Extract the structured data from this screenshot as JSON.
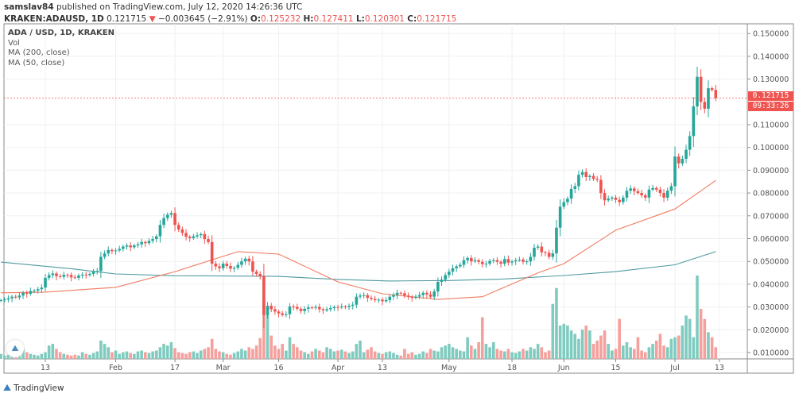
{
  "header": {
    "author": "samslav84",
    "published_text": "published on TradingView.com, July 12, 2020 14:26:36 UTC",
    "symbol": "KRAKEN:ADAUSD, 1D",
    "last": "0.121715",
    "change": "−0.003645 (−2.91%)",
    "o_label": "O:",
    "o": "0.125232",
    "h_label": "H:",
    "h": "0.127411",
    "l_label": "L:",
    "l": "0.120301",
    "c_label": "C:",
    "c": "0.121715"
  },
  "legend": {
    "title": "ADA / USD, 1D, KRAKEN",
    "items": [
      "Vol",
      "MA (200, close)",
      "MA (50, close)"
    ]
  },
  "price_label": {
    "value": "0.121715",
    "countdown": "09:33:26"
  },
  "footer": {
    "brand": "TradingView"
  },
  "colors": {
    "up": "#26a69a",
    "down": "#ef5350",
    "vol_up": "#7fcbbf",
    "vol_down": "#f5a09d",
    "ma50": "#f07b5f",
    "ma200": "#4f9aa0",
    "grid": "#eef0f3"
  },
  "chart_data": {
    "type": "candlestick",
    "price_axis": {
      "ticks": [
        "0.150000",
        "0.140000",
        "0.130000",
        "0.110000",
        "0.100000",
        "0.090000",
        "0.080000",
        "0.070000",
        "0.060000",
        "0.050000",
        "0.040000",
        "0.030000",
        "0.020000",
        "0.010000"
      ],
      "range": [
        0.0,
        0.16
      ]
    },
    "time_axis": [
      {
        "label": "13",
        "date": "2020-01-13"
      },
      {
        "label": "Feb",
        "date": "2020-02-01"
      },
      {
        "label": "17",
        "date": "2020-02-17"
      },
      {
        "label": "Mar",
        "date": "2020-03-01"
      },
      {
        "label": "16",
        "date": "2020-03-16"
      },
      {
        "label": "Apr",
        "date": "2020-04-01"
      },
      {
        "label": "13",
        "date": "2020-04-13"
      },
      {
        "label": "May",
        "date": "2020-05-01"
      },
      {
        "label": "18",
        "date": "2020-05-18"
      },
      {
        "label": "Jun",
        "date": "2020-06-01"
      },
      {
        "label": "15",
        "date": "2020-06-15"
      },
      {
        "label": "Jul",
        "date": "2020-07-01"
      },
      {
        "label": "13",
        "date": "2020-07-13"
      }
    ],
    "start_date": "2020-01-01",
    "first_open": 0.0328,
    "closes": [
      0.033,
      0.0333,
      0.0338,
      0.0345,
      0.0342,
      0.035,
      0.0362,
      0.0358,
      0.037,
      0.0372,
      0.0378,
      0.0385,
      0.0428,
      0.044,
      0.0447,
      0.0435,
      0.0432,
      0.0441,
      0.044,
      0.043,
      0.0428,
      0.0438,
      0.0442,
      0.044,
      0.0445,
      0.0455,
      0.0458,
      0.052,
      0.0535,
      0.055,
      0.0545,
      0.0548,
      0.0555,
      0.0565,
      0.057,
      0.0562,
      0.057,
      0.0575,
      0.0585,
      0.058,
      0.059,
      0.0598,
      0.061,
      0.066,
      0.069,
      0.0705,
      0.0712,
      0.066,
      0.064,
      0.0625,
      0.0608,
      0.0602,
      0.061,
      0.0615,
      0.062,
      0.0598,
      0.0585,
      0.049,
      0.0478,
      0.047,
      0.049,
      0.048,
      0.0468,
      0.0472,
      0.0485,
      0.05,
      0.0512,
      0.05,
      0.0455,
      0.0445,
      0.0435,
      0.0265,
      0.0305,
      0.029,
      0.028,
      0.0272,
      0.0265,
      0.0268,
      0.0302,
      0.03,
      0.0292,
      0.0282,
      0.0292,
      0.0298,
      0.0296,
      0.03,
      0.029,
      0.0285,
      0.029,
      0.0295,
      0.03,
      0.0298,
      0.0302,
      0.03,
      0.0305,
      0.031,
      0.0345,
      0.035,
      0.0352,
      0.034,
      0.0335,
      0.033,
      0.0332,
      0.0325,
      0.033,
      0.0345,
      0.0352,
      0.0362,
      0.036,
      0.035,
      0.0345,
      0.034,
      0.0345,
      0.0352,
      0.0362,
      0.0355,
      0.0345,
      0.0368,
      0.041,
      0.042,
      0.044,
      0.0455,
      0.047,
      0.0478,
      0.0485,
      0.0505,
      0.0515,
      0.05,
      0.0505,
      0.0498,
      0.0488,
      0.049,
      0.0502,
      0.0505,
      0.0498,
      0.049,
      0.051,
      0.0495,
      0.05,
      0.0505,
      0.0508,
      0.0498,
      0.05,
      0.052,
      0.056,
      0.0565,
      0.054,
      0.0538,
      0.052,
      0.0535,
      0.0648,
      0.074,
      0.076,
      0.0775,
      0.0818,
      0.083,
      0.088,
      0.0892,
      0.087,
      0.0875,
      0.0862,
      0.0858,
      0.08,
      0.0768,
      0.0775,
      0.078,
      0.077,
      0.076,
      0.078,
      0.081,
      0.082,
      0.0808,
      0.08,
      0.079,
      0.078,
      0.0815,
      0.0822,
      0.0815,
      0.08,
      0.078,
      0.081,
      0.083,
      0.096,
      0.093,
      0.095,
      0.099,
      0.105,
      0.118,
      0.131,
      0.12,
      0.117,
      0.126,
      0.125232,
      0.121715
    ],
    "volumes": [
      6,
      4,
      5,
      6,
      7,
      9,
      12,
      8,
      6,
      5,
      4,
      6,
      8,
      16,
      18,
      12,
      8,
      6,
      5,
      4,
      5,
      4,
      8,
      6,
      5,
      7,
      9,
      22,
      18,
      14,
      8,
      10,
      6,
      8,
      9,
      7,
      6,
      9,
      10,
      8,
      7,
      9,
      10,
      14,
      18,
      16,
      20,
      13,
      8,
      7,
      6,
      8,
      9,
      7,
      10,
      12,
      14,
      24,
      12,
      9,
      8,
      6,
      5,
      7,
      9,
      12,
      10,
      14,
      12,
      16,
      25,
      70,
      55,
      28,
      16,
      12,
      18,
      10,
      26,
      18,
      14,
      10,
      8,
      6,
      9,
      12,
      10,
      8,
      14,
      12,
      9,
      10,
      11,
      9,
      7,
      9,
      18,
      22,
      8,
      11,
      14,
      9,
      7,
      6,
      8,
      9,
      7,
      5,
      4,
      12,
      6,
      8,
      5,
      6,
      9,
      7,
      12,
      10,
      9,
      14,
      16,
      18,
      14,
      12,
      10,
      9,
      26,
      16,
      12,
      20,
      50,
      18,
      14,
      20,
      12,
      10,
      9,
      12,
      8,
      7,
      9,
      12,
      10,
      14,
      12,
      18,
      14,
      8,
      10,
      66,
      85,
      40,
      42,
      40,
      34,
      30,
      24,
      35,
      40,
      34,
      18,
      22,
      28,
      34,
      18,
      10,
      12,
      48,
      16,
      20,
      14,
      12,
      26,
      10,
      8,
      14,
      18,
      22,
      30,
      16,
      14,
      24,
      26,
      28,
      40,
      52,
      48,
      26,
      100,
      60,
      48,
      32,
      26,
      14
    ],
    "ma200": [
      [
        "2020-01-01",
        0.0497
      ],
      [
        "2020-01-20",
        0.0468
      ],
      [
        "2020-02-01",
        0.0445
      ],
      [
        "2020-02-17",
        0.0437
      ],
      [
        "2020-03-01",
        0.0436
      ],
      [
        "2020-03-16",
        0.0434
      ],
      [
        "2020-04-01",
        0.0421
      ],
      [
        "2020-04-15",
        0.0414
      ],
      [
        "2020-05-01",
        0.0416
      ],
      [
        "2020-05-15",
        0.0422
      ],
      [
        "2020-06-01",
        0.0438
      ],
      [
        "2020-06-15",
        0.0455
      ],
      [
        "2020-07-01",
        0.0485
      ],
      [
        "2020-07-12",
        0.0543
      ]
    ],
    "ma50": [
      [
        "2020-01-01",
        0.0362
      ],
      [
        "2020-01-13",
        0.0365
      ],
      [
        "2020-02-01",
        0.0386
      ],
      [
        "2020-02-17",
        0.0455
      ],
      [
        "2020-03-05",
        0.0543
      ],
      [
        "2020-03-16",
        0.0532
      ],
      [
        "2020-04-01",
        0.041
      ],
      [
        "2020-04-13",
        0.0358
      ],
      [
        "2020-04-28",
        0.0333
      ],
      [
        "2020-05-10",
        0.0345
      ],
      [
        "2020-05-25",
        0.045
      ],
      [
        "2020-06-01",
        0.049
      ],
      [
        "2020-06-15",
        0.0637
      ],
      [
        "2020-07-01",
        0.073
      ],
      [
        "2020-07-12",
        0.0855
      ]
    ]
  }
}
